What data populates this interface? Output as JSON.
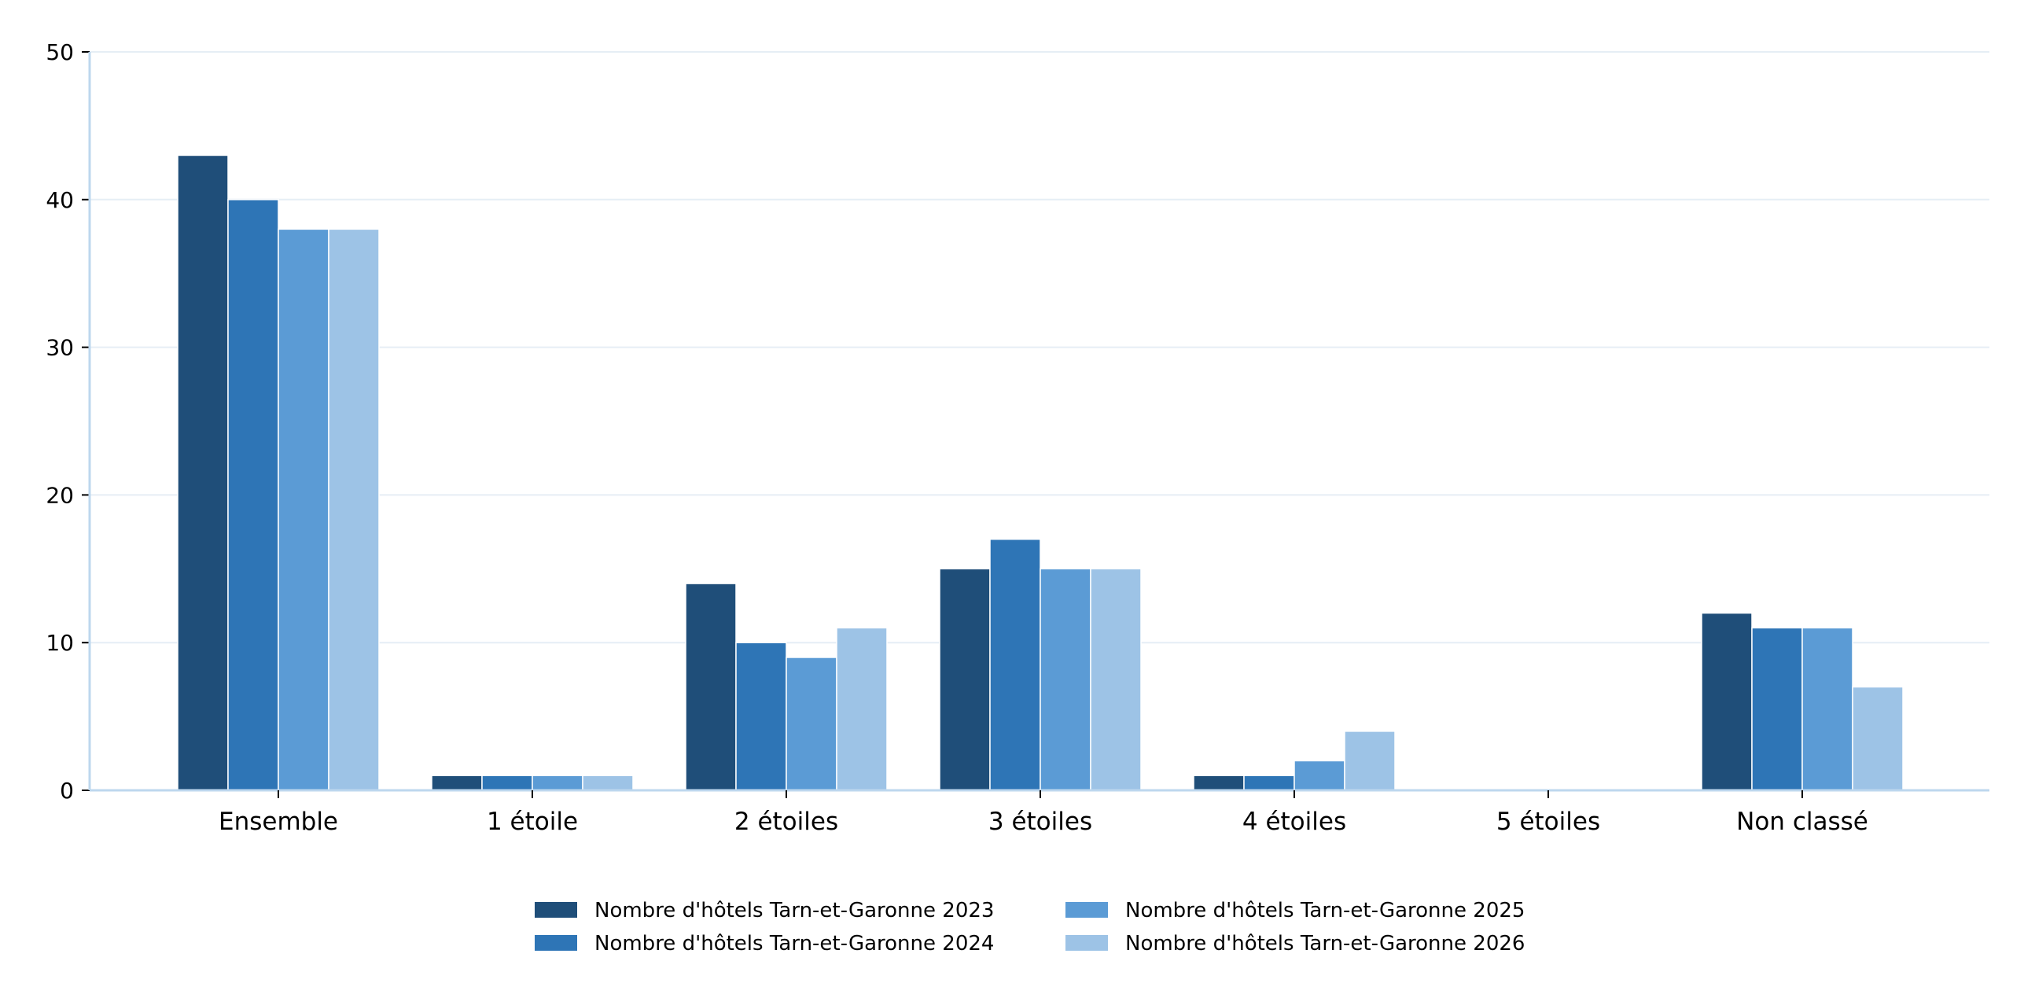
{
  "chart_data": {
    "type": "bar",
    "title": "",
    "xlabel": "",
    "ylabel": "",
    "categories": [
      "Ensemble",
      "1 étoile",
      "2 étoiles",
      "3 étoiles",
      "4 étoiles",
      "5 étoiles",
      "Non classé"
    ],
    "series": [
      {
        "name": "Nombre d'hôtels Tarn-et-Garonne 2023",
        "color": "#1f4e79",
        "values": [
          43,
          1,
          14,
          15,
          1,
          0,
          12
        ]
      },
      {
        "name": "Nombre d'hôtels Tarn-et-Garonne 2024",
        "color": "#2e75b6",
        "values": [
          40,
          1,
          10,
          17,
          1,
          0,
          11
        ]
      },
      {
        "name": "Nombre d'hôtels Tarn-et-Garonne 2025",
        "color": "#5b9bd5",
        "values": [
          38,
          1,
          9,
          15,
          2,
          0,
          11
        ]
      },
      {
        "name": "Nombre d'hôtels Tarn-et-Garonne 2026",
        "color": "#9dc3e6",
        "values": [
          38,
          1,
          11,
          15,
          4,
          0,
          7
        ]
      }
    ],
    "ylim": [
      0,
      50
    ],
    "yticks": [
      0,
      10,
      20,
      30,
      40,
      50
    ],
    "grid": "horizontal",
    "legend_position": "bottom-center",
    "axis_color": "#bdd7ee",
    "grid_color": "#e6eef5"
  }
}
